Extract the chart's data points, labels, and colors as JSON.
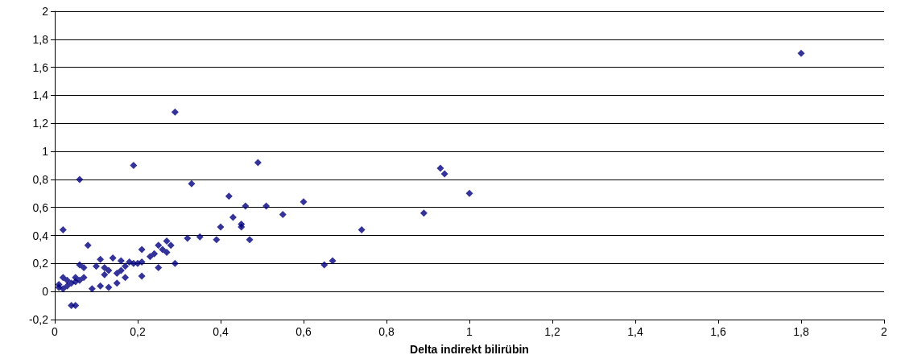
{
  "chart_data": {
    "type": "scatter",
    "xlabel": "Delta indirekt bilirübin",
    "marker": "diamond",
    "grid": "y",
    "xlim": [
      0,
      2
    ],
    "ylim": [
      -0.2,
      2
    ],
    "xticks": [
      0,
      {
        "value": 0.2,
        "label": "0,2"
      },
      {
        "value": 0.4,
        "label": "0,4"
      },
      {
        "value": 0.6,
        "label": "0,6"
      },
      {
        "value": 0.8,
        "label": "0,8"
      },
      1,
      {
        "value": 1.2,
        "label": "1,2"
      },
      {
        "value": 1.4,
        "label": "1,4"
      },
      {
        "value": 1.6,
        "label": "1,6"
      },
      {
        "value": 1.8,
        "label": "1,8"
      },
      2
    ],
    "yticks": [
      {
        "value": -0.2,
        "label": "-0,2"
      },
      0,
      {
        "value": 0.2,
        "label": "0,2"
      },
      {
        "value": 0.4,
        "label": "0,4"
      },
      {
        "value": 0.6,
        "label": "0,6"
      },
      {
        "value": 0.8,
        "label": "0,8"
      },
      1,
      {
        "value": 1.2,
        "label": "1,2"
      },
      {
        "value": 1.4,
        "label": "1,4"
      },
      {
        "value": 1.6,
        "label": "1,6"
      },
      {
        "value": 1.8,
        "label": "1,8"
      },
      2
    ],
    "series": [
      {
        "color": "#000080",
        "x": [
          0.01,
          0.01,
          0.02,
          0.02,
          0.02,
          0.03,
          0.03,
          0.04,
          0.05,
          0.04,
          0.05,
          0.05,
          0.06,
          0.06,
          0.06,
          0.07,
          0.07,
          0.08,
          0.09,
          0.1,
          0.11,
          0.11,
          0.12,
          0.12,
          0.13,
          0.13,
          0.14,
          0.15,
          0.15,
          0.16,
          0.16,
          0.17,
          0.17,
          0.18,
          0.19,
          0.19,
          0.2,
          0.21,
          0.21,
          0.21,
          0.23,
          0.24,
          0.25,
          0.25,
          0.26,
          0.27,
          0.27,
          0.28,
          0.29,
          0.29,
          0.32,
          0.33,
          0.35,
          0.39,
          0.4,
          0.42,
          0.43,
          0.45,
          0.45,
          0.46,
          0.47,
          0.49,
          0.51,
          0.55,
          0.6,
          0.65,
          0.67,
          0.74,
          0.89,
          0.93,
          0.94,
          1.0,
          1.8
        ],
        "values": [
          0.03,
          0.05,
          0.02,
          0.1,
          0.44,
          0.04,
          0.08,
          -0.1,
          -0.1,
          0.06,
          0.1,
          0.07,
          0.08,
          0.19,
          0.8,
          0.1,
          0.17,
          0.33,
          0.02,
          0.18,
          0.23,
          0.04,
          0.17,
          0.12,
          0.03,
          0.15,
          0.24,
          0.06,
          0.13,
          0.15,
          0.22,
          0.1,
          0.18,
          0.21,
          0.9,
          0.2,
          0.2,
          0.21,
          0.11,
          0.3,
          0.25,
          0.27,
          0.17,
          0.33,
          0.3,
          0.28,
          0.36,
          0.33,
          0.2,
          1.28,
          0.38,
          0.77,
          0.39,
          0.37,
          0.46,
          0.68,
          0.53,
          0.48,
          0.46,
          0.61,
          0.37,
          0.92,
          0.61,
          0.55,
          0.64,
          0.19,
          0.22,
          0.44,
          0.56,
          0.88,
          0.84,
          0.7,
          1.7
        ]
      }
    ]
  }
}
